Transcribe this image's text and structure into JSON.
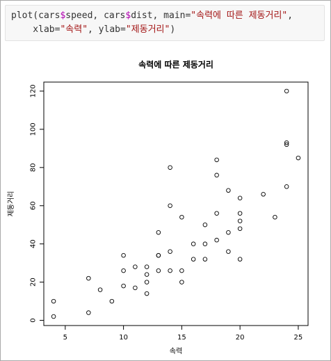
{
  "code": {
    "line1": {
      "p1": "plot(cars",
      "d1": "$",
      "p2": "speed, cars",
      "d2": "$",
      "p3": "dist, main=",
      "s1": "\"속력에 따른 제동거리\"",
      "p4": ","
    },
    "line2": {
      "p1": "    xlab=",
      "s1": "\"속력\"",
      "p2": ", ylab=",
      "s2": "\"제동거리\"",
      "p3": ")"
    }
  },
  "chart_data": {
    "type": "scatter",
    "title": "속력에 따른 제동거리",
    "xlabel": "속력",
    "ylabel": "제동거리",
    "xlim": [
      3.16,
      25.84
    ],
    "ylim": [
      -2.72,
      124.72
    ],
    "xticks": [
      "5",
      "10",
      "15",
      "20",
      "25"
    ],
    "yticks": [
      "0",
      "20",
      "40",
      "60",
      "80",
      "100",
      "120"
    ],
    "x": [
      4,
      4,
      7,
      7,
      8,
      9,
      10,
      10,
      10,
      11,
      11,
      12,
      12,
      12,
      12,
      13,
      13,
      13,
      13,
      14,
      14,
      14,
      14,
      15,
      15,
      15,
      16,
      16,
      17,
      17,
      17,
      18,
      18,
      18,
      18,
      19,
      19,
      19,
      20,
      20,
      20,
      20,
      20,
      22,
      23,
      24,
      24,
      24,
      24,
      25
    ],
    "y": [
      2,
      10,
      4,
      22,
      16,
      10,
      18,
      26,
      34,
      17,
      28,
      14,
      20,
      24,
      28,
      26,
      34,
      34,
      46,
      26,
      36,
      60,
      80,
      20,
      26,
      54,
      32,
      40,
      32,
      40,
      50,
      42,
      56,
      76,
      84,
      36,
      46,
      68,
      32,
      48,
      52,
      56,
      64,
      66,
      54,
      70,
      92,
      93,
      120,
      85
    ]
  }
}
